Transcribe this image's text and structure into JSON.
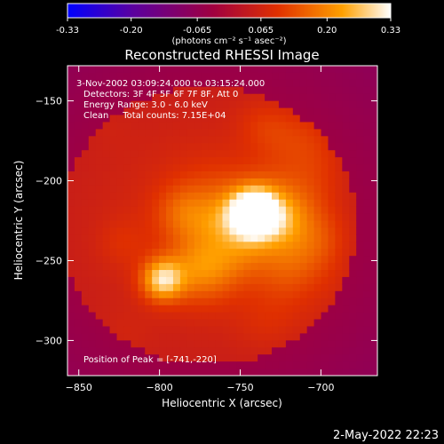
{
  "chart_data": {
    "type": "heatmap",
    "title": "Reconstructed RHESSI Image",
    "xlabel": "Heliocentric X (arcsec)",
    "ylabel": "Heliocentric Y (arcsec)",
    "xlim": [
      -857,
      -665
    ],
    "ylim": [
      -322,
      -128
    ],
    "x_ticks": [
      -850,
      -800,
      -750,
      -700
    ],
    "y_ticks": [
      -150,
      -200,
      -250,
      -300
    ],
    "colorbar": {
      "range": [
        -0.33,
        0.33
      ],
      "ticks": [
        -0.33,
        -0.2,
        -0.065,
        0.065,
        0.2,
        0.33
      ],
      "tick_labels": [
        "-0.33",
        "-0.20",
        "-0.065",
        "0.065",
        "0.20",
        "0.33"
      ],
      "unit_label": "(photons cm⁻² s⁻¹ asec⁻²)",
      "colormap": "rainbow",
      "colors": [
        "#0000ff",
        "#5a00a0",
        "#a00040",
        "#e03000",
        "#ffa000",
        "#ffffff"
      ]
    },
    "annotations": [
      "3-Nov-2002 03:09:24.000 to 03:15:24.000",
      "Detectors: 3F 4F 5F 6F 7F 8F, Att 0",
      "Energy Range: 3.0 - 6.0 keV",
      "Clean     Total counts: 7.15E+04"
    ],
    "peak_label": "Position of Peak = [-741,-220]",
    "sources": [
      {
        "x": -741,
        "y": -220,
        "intensity": 0.33
      },
      {
        "x": -798,
        "y": -262,
        "intensity": 0.22
      }
    ],
    "grid": false
  },
  "footer": {
    "timestamp": "2-May-2022 22:23"
  }
}
